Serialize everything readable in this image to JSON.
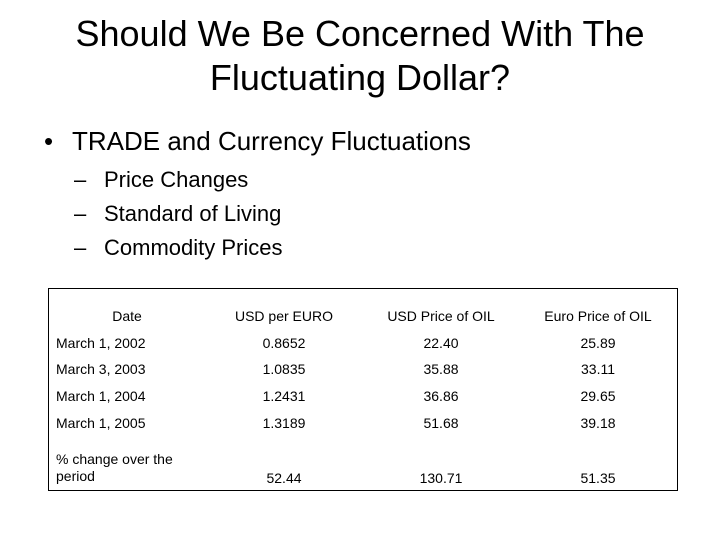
{
  "slide": {
    "title_line1": "Should We Be Concerned With The",
    "title_line2": "Fluctuating Dollar?",
    "bullet": {
      "symbol": "•",
      "text": "TRADE and Currency Fluctuations"
    },
    "sub_bullets": [
      {
        "dash": "–",
        "text": "Price Changes"
      },
      {
        "dash": "–",
        "text": "Standard of Living"
      },
      {
        "dash": "–",
        "text": "Commodity Prices"
      }
    ]
  },
  "table": {
    "headers": [
      "Date",
      "USD per EURO",
      "USD Price of OIL",
      "Euro Price of OIL"
    ],
    "rows": [
      [
        "March 1, 2002",
        "0.8652",
        "22.40",
        "25.89"
      ],
      [
        "March 3, 2003",
        "1.0835",
        "35.88",
        "33.11"
      ],
      [
        "March 1, 2004",
        "1.2431",
        "36.86",
        "29.65"
      ],
      [
        "March 1, 2005",
        "1.3189",
        "51.68",
        "39.18"
      ]
    ],
    "summary": {
      "label": "% change over the period",
      "values": [
        "52.44",
        "130.71",
        "51.35"
      ]
    }
  }
}
